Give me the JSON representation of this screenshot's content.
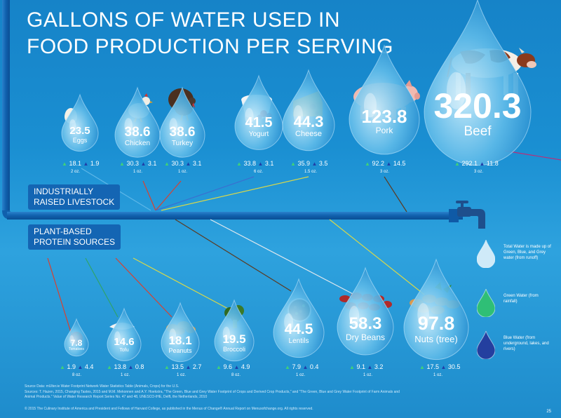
{
  "title": {
    "line1": "GALLONS OF WATER USED IN",
    "line2": "FOOD PRODUCTION PER SERVING"
  },
  "categories": {
    "livestock": [
      "INDUSTRIALLY",
      "RAISED LIVESTOCK"
    ],
    "plant": [
      "PLANT-BASED",
      "PROTEIN SOURCES"
    ]
  },
  "foods_top": [
    {
      "value": "23.5",
      "name": "Eggs",
      "green": "18.1",
      "blue": "1.9",
      "serving": "2 oz."
    },
    {
      "value": "38.6",
      "name": "Chicken",
      "green": "30.3",
      "blue": "3.1",
      "serving": "1 oz."
    },
    {
      "value": "38.6",
      "name": "Turkey",
      "green": "30.3",
      "blue": "3.1",
      "serving": "1 oz."
    },
    {
      "value": "41.5",
      "name": "Yogurt",
      "green": "33.8",
      "blue": "3.1",
      "serving": "6 oz."
    },
    {
      "value": "44.3",
      "name": "Cheese",
      "green": "35.9",
      "blue": "3.5",
      "serving": "1.5 oz."
    },
    {
      "value": "123.8",
      "name": "Pork",
      "green": "92.2",
      "blue": "14.5",
      "serving": "3 oz."
    },
    {
      "value": "320.3",
      "name": "Beef",
      "green": "292.1",
      "blue": "11.8",
      "serving": "3 oz."
    }
  ],
  "foods_bottom": [
    {
      "value": "7.8",
      "name": "Tomatoes",
      "green": "1.9",
      "blue": "4.4",
      "serving": "8 oz."
    },
    {
      "value": "14.6",
      "name": "Tofu",
      "green": "13.8",
      "blue": "0.8",
      "serving": "1 oz."
    },
    {
      "value": "18.1",
      "name": "Peanuts",
      "green": "13.5",
      "blue": "2.7",
      "serving": "1 oz."
    },
    {
      "value": "19.5",
      "name": "Broccoli",
      "green": "9.6",
      "blue": "4.9",
      "serving": "8 oz."
    },
    {
      "value": "44.5",
      "name": "Lentils",
      "green": "7.9",
      "blue": "0.4",
      "serving": "1 oz."
    },
    {
      "value": "58.3",
      "name": "Dry Beans",
      "green": "9.1",
      "blue": "3.2",
      "serving": "1 oz."
    },
    {
      "value": "97.8",
      "name": "Nuts (tree)",
      "green": "17.5",
      "blue": "30.5",
      "serving": "1 oz."
    }
  ],
  "legend": [
    {
      "text": "Total Water is made up of Green, Blue, and Grey water (from runoff)",
      "color": "#cfeaf8"
    },
    {
      "text": "Green Water (from rainfall)",
      "color": "#2fbf76"
    },
    {
      "text": "Blue Water (from underground, lakes, and rivers)",
      "color": "#243f9f"
    }
  ],
  "footer": {
    "line1": "Source Data: mUlter.ie Water Footprint Network Water Statistics Table (Animals, Crops) for the U.S.",
    "line2": "Sources: T. Hazen, 2015, Changing Tastes, 2015 and M.M. Mekonnen and A.Y. Hoekstra, \"The Green, Blue and Grey Water Footprint of Crops and Derived Crop Products,\" and \"The Green, Blue and Grey Water Footprint of Farm Animals and",
    "line3": "Animal Products.\" Value of Water Research Report Series No. 47 and 48, UNESCO-IHE, Delft, the Netherlands, 2010",
    "line4": "© 2015 The Culinary Institute of America and President and Fellows of Harvard College, as published in the Menus of Change® Annual Report on Menusofchange.org. All rights reserved.",
    "page": "25"
  },
  "colors": {
    "green": "#3fd17a",
    "blue": "#1f3fa8",
    "pipe": "#1565b5",
    "label_box": "#1465b3"
  },
  "icons": {
    "faucet": "faucet-icon",
    "drop": "water-drop-icon"
  }
}
